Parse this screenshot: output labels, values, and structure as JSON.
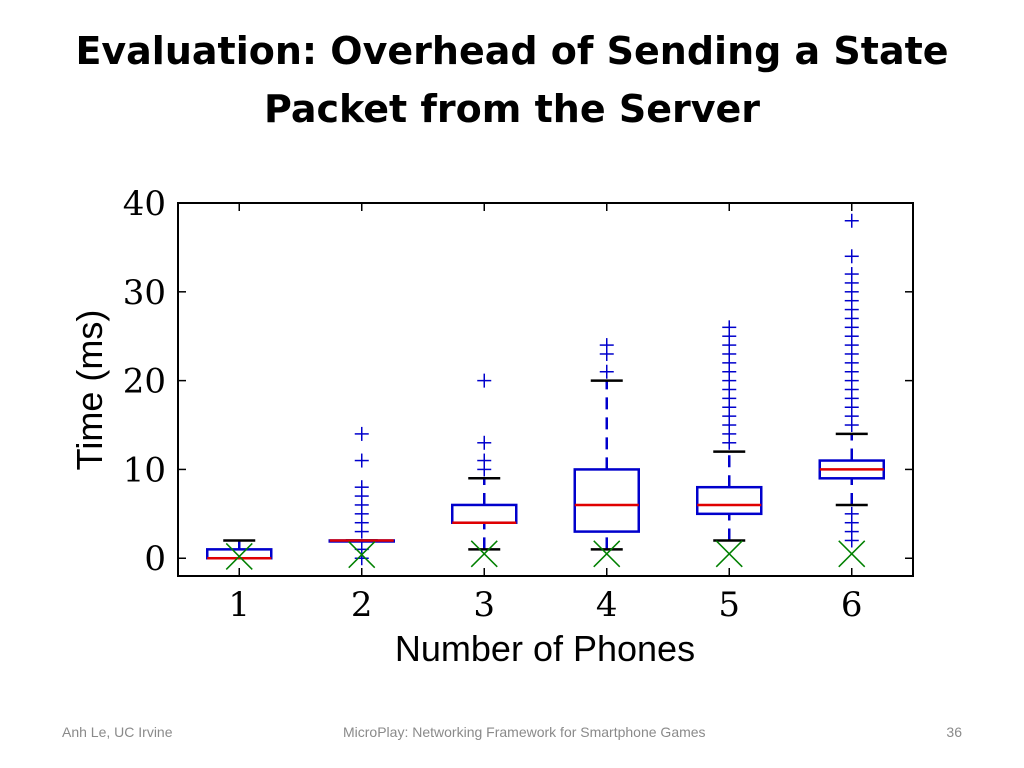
{
  "slide": {
    "title_line1": "Evaluation: Overhead of Sending a State",
    "title_line2": "Packet from the Server"
  },
  "footer": {
    "left": "Anh Le, UC Irvine",
    "center": "MicroPlay: Networking Framework for Smartphone Games",
    "right": "36"
  },
  "colors": {
    "box": "#0000cc",
    "median": "#e00000",
    "whisker_cap": "#000000",
    "outlier": "#0000cc",
    "mean_marker": "#008000"
  },
  "chart_data": {
    "type": "boxplot",
    "xlabel": "Number of Phones",
    "ylabel": "Time (ms)",
    "ylim": [
      -2,
      40
    ],
    "yticks": [
      0,
      10,
      20,
      30,
      40
    ],
    "categories": [
      "1",
      "2",
      "3",
      "4",
      "5",
      "6"
    ],
    "grid": false,
    "series": [
      {
        "category": "1",
        "q1": 0,
        "median": 0,
        "q3": 1,
        "whisker_low": 0,
        "whisker_high": 2,
        "mean_marker": 0.2,
        "outliers": []
      },
      {
        "category": "2",
        "q1": 2,
        "median": 2,
        "q3": 2,
        "whisker_low": 2,
        "whisker_high": 2,
        "mean_marker": 0.4,
        "outliers": [
          0,
          1,
          3,
          4,
          5,
          6,
          7,
          8,
          11,
          14
        ]
      },
      {
        "category": "3",
        "q1": 4,
        "median": 4,
        "q3": 6,
        "whisker_low": 1,
        "whisker_high": 9,
        "mean_marker": 0.5,
        "outliers": [
          10,
          11,
          13,
          20
        ]
      },
      {
        "category": "4",
        "q1": 3,
        "median": 6,
        "q3": 10,
        "whisker_low": 1,
        "whisker_high": 20,
        "mean_marker": 0.5,
        "outliers": [
          21,
          23,
          24
        ]
      },
      {
        "category": "5",
        "q1": 5,
        "median": 6,
        "q3": 8,
        "whisker_low": 2,
        "whisker_high": 12,
        "mean_marker": 0.5,
        "outliers": [
          13,
          14,
          15,
          16,
          17,
          18,
          19,
          20,
          21,
          22,
          23,
          24,
          25,
          26
        ]
      },
      {
        "category": "6",
        "q1": 9,
        "median": 10,
        "q3": 11,
        "whisker_low": 6,
        "whisker_high": 14,
        "mean_marker": 0.5,
        "outliers": [
          2,
          3,
          4,
          5,
          15,
          16,
          17,
          18,
          19,
          20,
          21,
          22,
          23,
          24,
          25,
          26,
          27,
          28,
          29,
          30,
          31,
          32,
          34,
          38
        ]
      }
    ]
  }
}
